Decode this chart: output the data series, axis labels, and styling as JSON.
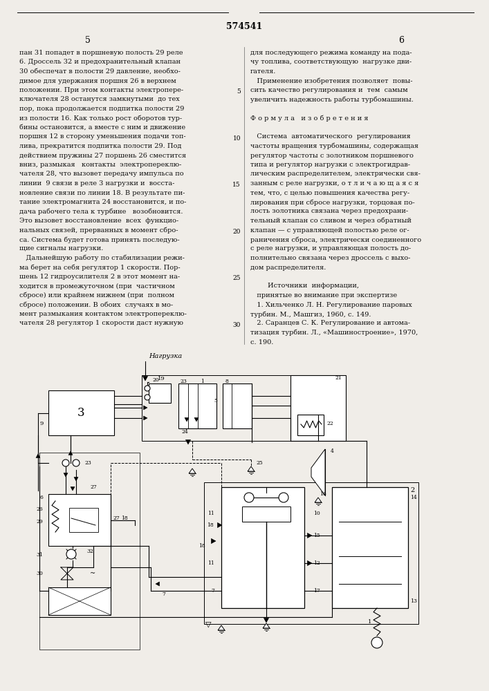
{
  "page_bg": "#f0ede8",
  "text_color": "#111111",
  "title_number": "574541",
  "col_left_num": "5",
  "col_right_num": "6",
  "left_col_lines": [
    "пан 31 попадет в поршневую полость 29 реле",
    "6. Дроссель 32 и предохранительный клапан",
    "30 обеспечат в полости 29 давление, необхо-",
    "димое для удержания поршня 26 в верхнем",
    "положении. При этом контакты электропере-",
    "ключателя 28 останутся замкнутыми  до тех",
    "пор, пока продолжается подпитка полости 29",
    "из полости 16. Как только рост оборотов тур-",
    "бины остановится, а вместе с ним и движение",
    "поршня 12 в сторону уменьшения подачи топ-",
    "лива, прекратится подпитка полости 29. Под",
    "действием пружины 27 поршень 26 сместится",
    "вниз, размыкая   контакты  электропереклю-",
    "чателя 28, что вызовет передачу импульса по",
    "линии  9 связи в реле 3 нагрузки и  восста-",
    "новление связи по линии 18. В результате пи-",
    "тание электромагнита 24 восстановится, и по-",
    "дача рабочего тела к турбине   возобновится.",
    "Это вызовет восстановление  всех  функцио-",
    "нальных связей, прерванных в момент сбро-",
    "са. Система будет готова принять последую-",
    "щие сигналы нагрузки.",
    "   Дальнейшую работу по стабилизации режи-",
    "ма берет на себя регулятор 1 скорости. Пор-",
    "шень 12 гидроусилителя 2 в этот момент на-",
    "ходится в промежуточном (при  частичном",
    "сбросе) или крайнем нижнем (при  полном",
    "сбросе) положении. В обоих  случаях в мо-",
    "мент размыкания контактом электропереклю-",
    "чателя 28 регулятор 1 скорости даст нужную"
  ],
  "right_col_lines": [
    "для последующего режима команду на пода-",
    "чу топлива, соответствующую  нагрузке дви-",
    "гателя.",
    "   Применение изобретения позволяет  повы-",
    "сить качество регулирования и  тем  самым",
    "увеличить надежность работы турбомашины.",
    "",
    "Ф о р м у л а   и з о б р е т е н и я",
    "",
    "   Система  автоматического  регулирования",
    "частоты вращения турбомашины, содержащая",
    "регулятор частоты с золотником поршневого",
    "типа и регулятор нагрузки с электрогидрав-",
    "лическим распределителем, электрически свя-",
    "занным с реле нагрузки, о т л и ч а ю щ а я с я",
    "тем, что, с целью повышения качества регу-",
    "лирования при сбросе нагрузки, торцовая по-",
    "лость золотника связана через предохрани-",
    "тельный клапан со сливом и через обратный",
    "клапан — с управляющей полостью реле ог-",
    "раничения сброса, электрически соединенного",
    "с реле нагрузки, и управляющая полость до-",
    "полнительно связана через дроссель с выхо-",
    "дом распределителя.",
    "",
    "        Источники  информации,",
    "   принятые во внимание при экспертизе",
    "   1. Хильченко Л. Н. Регулирование паровых",
    "турбин. М., Машгиз, 1960, с. 149.",
    "   2. Саранцев С. К. Регулирование и автома-",
    "тизация турбин. Л., «Машиностроение», 1970,",
    "с. 190."
  ],
  "line_num_rows": [
    4,
    9,
    14,
    19,
    24,
    29
  ],
  "line_num_labels": [
    "5",
    "10",
    "15",
    "20",
    "25",
    "30"
  ]
}
